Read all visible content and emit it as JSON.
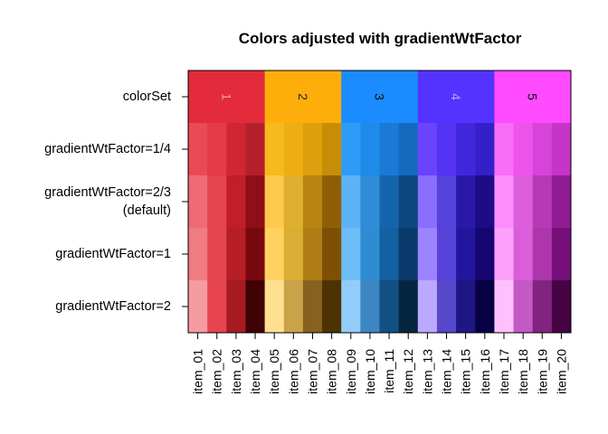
{
  "chart_data": {
    "type": "heatmap",
    "title": "Colors adjusted with gradientWtFactor",
    "xlabel": "",
    "ylabel": "",
    "columns": [
      "item_01",
      "item_02",
      "item_03",
      "item_04",
      "item_05",
      "item_06",
      "item_07",
      "item_08",
      "item_09",
      "item_10",
      "item_11",
      "item_12",
      "item_13",
      "item_14",
      "item_15",
      "item_16",
      "item_17",
      "item_18",
      "item_19",
      "item_20"
    ],
    "rows": [
      {
        "label": [
          "colorSet"
        ],
        "cells": null
      },
      {
        "label": [
          "gradientWtFactor=1/4"
        ],
        "cells": [
          "#E84A56",
          "#E33A45",
          "#D22533",
          "#B4202C",
          "#F7BA1E",
          "#EEAE13",
          "#DDA00C",
          "#C88D07",
          "#2E9BF6",
          "#1E8BEA",
          "#1A7AD6",
          "#156AC0",
          "#6B43FC",
          "#5533F5",
          "#4027DE",
          "#3320C8",
          "#F86DF6",
          "#EC54EC",
          "#D843DA",
          "#C435C8"
        ]
      },
      {
        "label": [
          "gradientWtFactor=2/3",
          "(default)"
        ],
        "cells": [
          "#EE6B75",
          "#E3444D",
          "#C01E28",
          "#8E0F18",
          "#FEC94C",
          "#DFAF2F",
          "#B88414",
          "#8F5F05",
          "#5BB3F7",
          "#2F8CD6",
          "#1565AD",
          "#0E467F",
          "#8A6EFF",
          "#5541DB",
          "#2A18A8",
          "#1E0B86",
          "#FC8DFB",
          "#DD5DDC",
          "#B739B7",
          "#8F1C92"
        ]
      },
      {
        "label": [
          "gradientWtFactor=1"
        ],
        "cells": [
          "#F07B82",
          "#E3464F",
          "#B71D25",
          "#78090F",
          "#FFD260",
          "#D9AE32",
          "#AE7D16",
          "#7D5004",
          "#6CBDF8",
          "#2F8BD2",
          "#1360A2",
          "#0A3A6B",
          "#9D84FF",
          "#5642D6",
          "#24159F",
          "#150672",
          "#FDA0FC",
          "#DA5EDA",
          "#AD36AD",
          "#770F7B"
        ]
      },
      {
        "label": [
          "gradientWtFactor=2"
        ],
        "cells": [
          "#F49CA0",
          "#E64550",
          "#A61B22",
          "#3F0205",
          "#FFE090",
          "#C9A24A",
          "#86621E",
          "#4D3202",
          "#92CDFA",
          "#3C86C2",
          "#124F83",
          "#06263F",
          "#BCA8FF",
          "#5648C8",
          "#1E1683",
          "#080244",
          "#FFC1FE",
          "#C359C3",
          "#82247F",
          "#460444"
        ]
      }
    ],
    "groups": [
      {
        "label": "1",
        "color": "#E32B3B",
        "text_color": "#F2A4A8",
        "span": [
          "item_01",
          "item_04"
        ]
      },
      {
        "label": "2",
        "color": "#FEAE0B",
        "text_color": "#222222",
        "span": [
          "item_05",
          "item_08"
        ]
      },
      {
        "label": "3",
        "color": "#1A8CFF",
        "text_color": "#111111",
        "span": [
          "item_09",
          "item_12"
        ]
      },
      {
        "label": "4",
        "color": "#5533FF",
        "text_color": "#B7AEFF",
        "span": [
          "item_13",
          "item_16"
        ]
      },
      {
        "label": "5",
        "color": "#FF4AFF",
        "text_color": "#111111",
        "span": [
          "item_17",
          "item_20"
        ]
      }
    ],
    "grid": false,
    "legend": "none"
  }
}
